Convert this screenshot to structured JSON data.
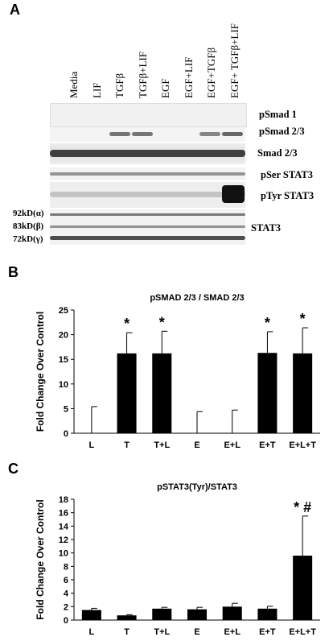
{
  "panel_a": {
    "letter": "A",
    "lanes": [
      "Media",
      "LIF",
      "TGFβ",
      "TGFβ+LIF",
      "EGF",
      "EGF+LIF",
      "EGF+TGFβ",
      "EGF+ TGFβ+LIF"
    ],
    "blot_labels": {
      "psmad1": "pSmad 1",
      "psmad23": "pSmad 2/3",
      "smad23": "Smad 2/3",
      "pser": "pSer STAT3",
      "ptyr": "pTyr STAT3",
      "stat3": "STAT3"
    },
    "mw_labels": [
      "92kD(α)",
      "83kD(β)",
      "72kD(γ)"
    ]
  },
  "chart_data": [
    {
      "panel": "B",
      "type": "bar",
      "title": "pSMAD 2/3 / SMAD 2/3",
      "xlabel": "",
      "ylabel": "Fold Change Over Control",
      "categories": [
        "L",
        "T",
        "T+L",
        "E",
        "E+L",
        "E+T",
        "E+L+T"
      ],
      "values": [
        0,
        16.2,
        16.2,
        0,
        0,
        16.3,
        16.2
      ],
      "error": [
        5.4,
        4.2,
        4.5,
        4.4,
        4.7,
        4.3,
        5.2
      ],
      "significance": [
        "",
        "*",
        "*",
        "",
        "",
        "*",
        "*"
      ],
      "ylim": [
        0,
        25
      ],
      "yticks": [
        0,
        5,
        10,
        15,
        20,
        25
      ],
      "bar_color": "#000000"
    },
    {
      "panel": "C",
      "type": "bar",
      "title": "pSTAT3(Tyr)/STAT3",
      "xlabel": "",
      "ylabel": "Fold Change Over Control",
      "categories": [
        "L",
        "T",
        "T+L",
        "E",
        "E+L",
        "E+T",
        "E+L+T"
      ],
      "values": [
        1.5,
        0.7,
        1.7,
        1.6,
        2.0,
        1.7,
        9.6
      ],
      "error": [
        0.25,
        0.1,
        0.2,
        0.3,
        0.5,
        0.35,
        5.9
      ],
      "significance": [
        "",
        "",
        "",
        "",
        "",
        "",
        "*  #"
      ],
      "ylim": [
        0,
        18
      ],
      "yticks": [
        0,
        2,
        4,
        6,
        8,
        10,
        12,
        14,
        16,
        18
      ],
      "bar_color": "#000000"
    }
  ]
}
